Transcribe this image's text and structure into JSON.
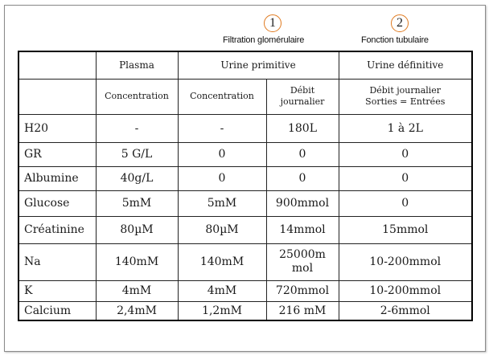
{
  "annotations": {
    "marker_1": "1",
    "label_1": "Filtration glomérulaire",
    "marker_2": "2",
    "label_2": "Fonction tubulaire",
    "marker_color": "#e07a1f"
  },
  "table": {
    "group_headers": {
      "plasma": "Plasma",
      "urine_primitive": "Urine primitive",
      "urine_definitive": "Urine définitive"
    },
    "sub_headers": {
      "plasma_concentration": "Concentration",
      "primitive_concentration": "Concentration",
      "primitive_debit": "Débit journalier",
      "definitive_debit_line1": "Débit journalier",
      "definitive_debit_line2": "Sorties = Entrées"
    },
    "rows": [
      {
        "label": "H20",
        "plasma": "-",
        "prim_conc": "-",
        "prim_debit": "180L",
        "def_debit": "1 à 2L"
      },
      {
        "label": "GR",
        "plasma": "5 G/L",
        "prim_conc": "0",
        "prim_debit": "0",
        "def_debit": "0"
      },
      {
        "label": "Albumine",
        "plasma": "40g/L",
        "prim_conc": "0",
        "prim_debit": "0",
        "def_debit": "0"
      },
      {
        "label": "Glucose",
        "plasma": "5mM",
        "prim_conc": "5mM",
        "prim_debit": "900mmol",
        "def_debit": "0"
      },
      {
        "label": "Créatinine",
        "plasma": "80µM",
        "prim_conc": "80µM",
        "prim_debit": "14mmol",
        "def_debit": "15mmol"
      },
      {
        "label": "Na",
        "plasma": "140mM",
        "prim_conc": "140mM",
        "prim_debit": "25000mmol",
        "def_debit": "10-200mmol"
      },
      {
        "label": "K",
        "plasma": "4mM",
        "prim_conc": "4mM",
        "prim_debit": "720mmol",
        "def_debit": "10-200mmol"
      },
      {
        "label": "Calcium",
        "plasma": "2,4mM",
        "prim_conc": "1,2mM",
        "prim_debit": "216 mM",
        "def_debit": "2-6mmol"
      }
    ]
  }
}
